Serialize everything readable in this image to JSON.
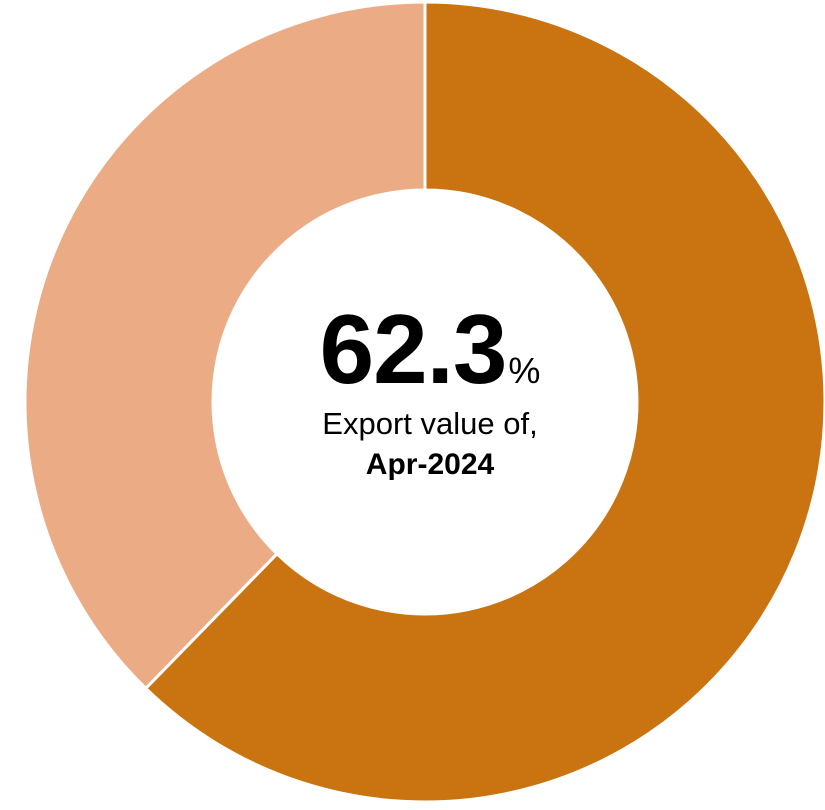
{
  "chart_data": {
    "type": "pie",
    "categories": [
      "Export value of, Apr-2024",
      ""
    ],
    "values": [
      62.3,
      37.7
    ],
    "colors": [
      "#C97411",
      "#EBAB85"
    ],
    "center_label": {
      "value": "62.3",
      "unit": "%",
      "text": "Export value of,",
      "period": "Apr-2024"
    }
  }
}
